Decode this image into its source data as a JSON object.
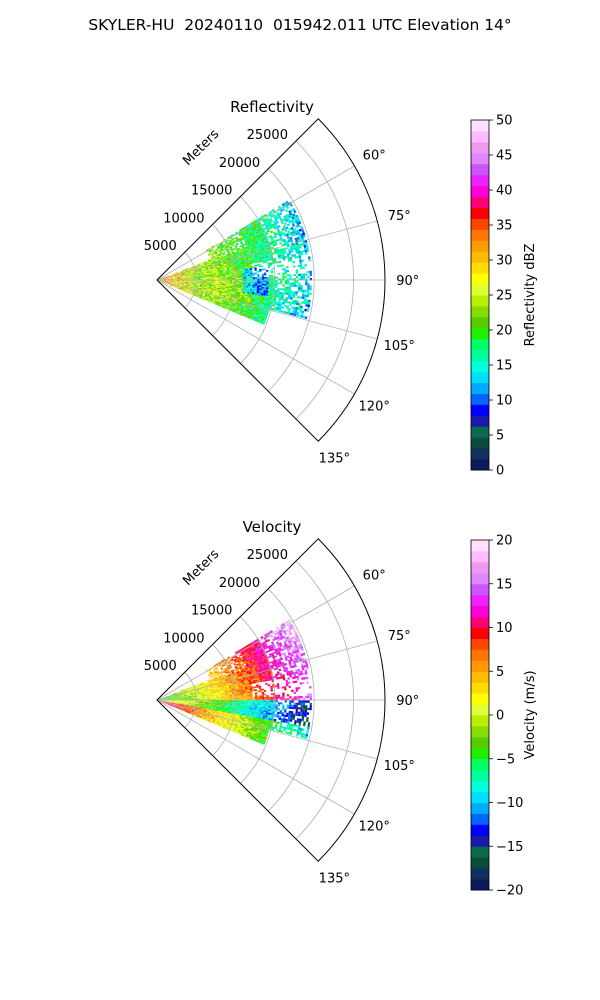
{
  "figure": {
    "title": "SKYLER-HU  20240110  015942.011 UTC Elevation 14°"
  },
  "chart_data": [
    {
      "type": "heatmap",
      "title": "Reflectivity",
      "projection": "polar sector (PPI)",
      "range_label": "Meters",
      "range_ticks": [
        5000,
        10000,
        15000,
        20000,
        25000
      ],
      "range_tick_labels": [
        "5000",
        "10000",
        "15000",
        "20000",
        "25000"
      ],
      "rmax": 29000,
      "azimuth_range_deg": [
        45,
        135
      ],
      "azimuth_ticks": [
        60,
        75,
        90,
        105,
        120,
        135
      ],
      "azimuth_tick_labels": [
        "60°",
        "75°",
        "90°",
        "105°",
        "120°",
        "135°"
      ],
      "grid": true,
      "colorbar": {
        "label": "Reflectivity dBZ",
        "min": 0,
        "max": 50,
        "ticks": [
          0,
          5,
          10,
          15,
          20,
          25,
          30,
          35,
          40,
          45,
          50
        ],
        "tick_labels": [
          "0",
          "5",
          "10",
          "15",
          "20",
          "25",
          "30",
          "35",
          "40",
          "45",
          "50"
        ],
        "colors": [
          "#0a1a5a",
          "#10305e",
          "#0d4a3e",
          "#0a6a4a",
          "#1a1aaa",
          "#0000ff",
          "#0066ff",
          "#00aaff",
          "#00ddff",
          "#00ffdd",
          "#00ff99",
          "#00ff66",
          "#22ee00",
          "#55cc00",
          "#88dd00",
          "#bbee00",
          "#ddff33",
          "#ffff00",
          "#ffdd00",
          "#ffbb00",
          "#ff9900",
          "#ff7700",
          "#ff4400",
          "#ff0000",
          "#ff0077",
          "#ff00dd",
          "#ee22ff",
          "#cc55ff",
          "#dd88ff",
          "#ee99ee",
          "#ffbbff",
          "#ffe0ff"
        ]
      },
      "data_summary": "echoes between roughly 60° and 110° azimuth out to about 19 km; 25–40 dBZ near radar, 10–22 dBZ farther out"
    },
    {
      "type": "heatmap",
      "title": "Velocity",
      "projection": "polar sector (PPI)",
      "range_label": "Meters",
      "range_ticks": [
        5000,
        10000,
        15000,
        20000,
        25000
      ],
      "range_tick_labels": [
        "5000",
        "10000",
        "15000",
        "20000",
        "25000"
      ],
      "rmax": 29000,
      "azimuth_range_deg": [
        45,
        135
      ],
      "azimuth_ticks": [
        60,
        75,
        90,
        105,
        120,
        135
      ],
      "azimuth_tick_labels": [
        "60°",
        "75°",
        "90°",
        "105°",
        "120°",
        "135°"
      ],
      "grid": true,
      "colorbar": {
        "label": "Velocity (m/s)",
        "min": -20,
        "max": 20,
        "ticks": [
          -20,
          -15,
          -10,
          -5,
          0,
          5,
          10,
          15,
          20
        ],
        "tick_labels": [
          "−20",
          "−15",
          "−10",
          "−5",
          "0",
          "5",
          "10",
          "15",
          "20"
        ],
        "colors": [
          "#0a1a5a",
          "#10305e",
          "#0d4a3e",
          "#0a6a4a",
          "#1a1aaa",
          "#0000ff",
          "#0066ff",
          "#00aaff",
          "#00ddff",
          "#00ffdd",
          "#00ff99",
          "#00ff66",
          "#22ee00",
          "#55cc00",
          "#88dd00",
          "#bbee00",
          "#ddff33",
          "#ffff00",
          "#ffdd00",
          "#ffbb00",
          "#ff9900",
          "#ff7700",
          "#ff4400",
          "#ff0000",
          "#ff0077",
          "#ff00dd",
          "#ee22ff",
          "#cc55ff",
          "#dd88ff",
          "#ee99ee",
          "#ffbbff",
          "#ffe0ff"
        ]
      },
      "data_summary": "velocities from about −15 to +15 m/s; positive (red/magenta) north of 90° far out, negative (green/cyan) south of 90°"
    }
  ]
}
